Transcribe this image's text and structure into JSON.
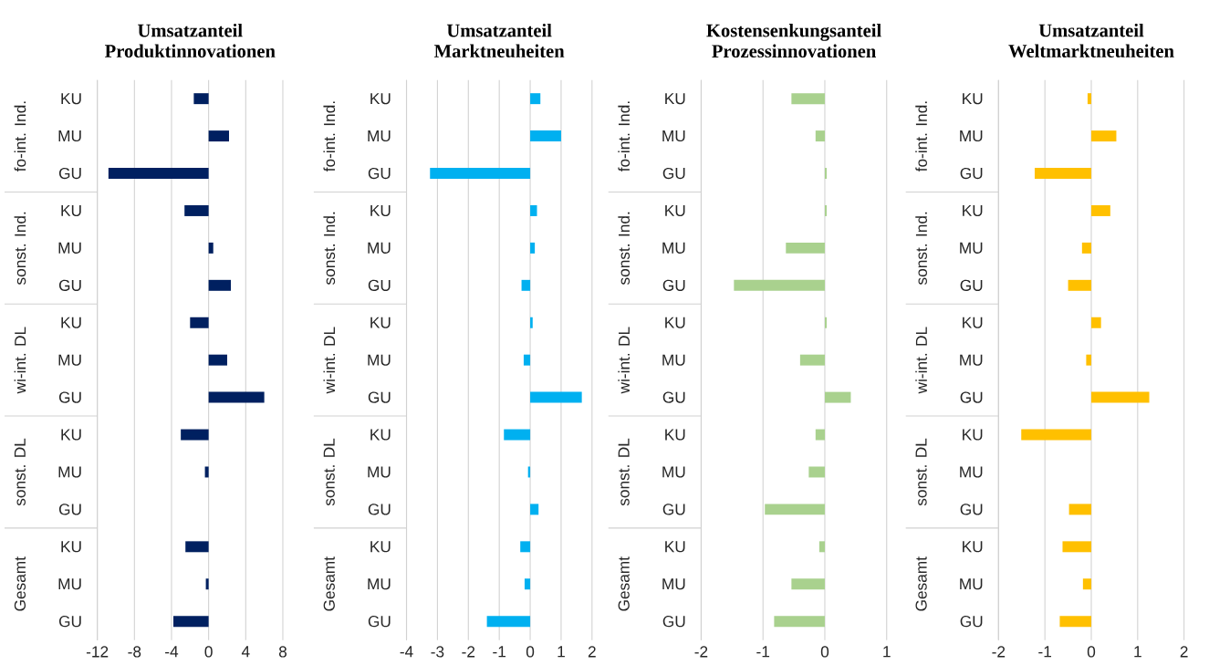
{
  "chart_data": [
    {
      "type": "bar",
      "orientation": "horizontal",
      "title": "Umsatzanteil Produktinnovationen",
      "categories": [
        "KU",
        "MU",
        "GU",
        "KU",
        "MU",
        "GU",
        "KU",
        "MU",
        "GU",
        "KU",
        "MU",
        "GU",
        "KU",
        "MU",
        "GU"
      ],
      "values": [
        -1.6,
        2.2,
        -10.8,
        -2.6,
        0.5,
        2.4,
        -2.0,
        2.0,
        6.0,
        -3.0,
        -0.4,
        null,
        -2.5,
        -0.3,
        -3.8
      ],
      "color": "#002060",
      "xlim": [
        -12,
        8
      ],
      "xticks": [
        -12,
        -8,
        -4,
        0,
        4,
        8
      ],
      "grid": "x",
      "annotations": [
        "fo-int. Ind.",
        "sonst. Ind.",
        "wi-int. DL",
        "sonst. DL",
        "Gesamt"
      ]
    },
    {
      "type": "bar",
      "orientation": "horizontal",
      "title": "Umsatzanteil Marktneuheiten",
      "categories": [
        "KU",
        "MU",
        "GU",
        "KU",
        "MU",
        "GU",
        "KU",
        "MU",
        "GU",
        "KU",
        "MU",
        "GU",
        "KU",
        "MU",
        "GU"
      ],
      "values": [
        0.33,
        1.0,
        -3.24,
        0.22,
        0.15,
        -0.28,
        0.08,
        -0.21,
        1.67,
        -0.85,
        -0.07,
        0.27,
        -0.32,
        -0.18,
        -1.4
      ],
      "color": "#00b0f0",
      "xlim": [
        -4,
        2
      ],
      "xticks": [
        -4,
        -3,
        -2,
        -1,
        0,
        1,
        2
      ],
      "grid": "x",
      "annotations": [
        "fo-int. Ind.",
        "sonst. Ind.",
        "wi-int. DL",
        "sonst. DL",
        "Gesamt"
      ]
    },
    {
      "type": "bar",
      "orientation": "horizontal",
      "title": "Kostensenkungsanteil Prozessinnovationen",
      "categories": [
        "KU",
        "MU",
        "GU",
        "KU",
        "MU",
        "GU",
        "KU",
        "MU",
        "GU",
        "KU",
        "MU",
        "GU",
        "KU",
        "MU",
        "GU"
      ],
      "values": [
        -0.54,
        -0.15,
        0.03,
        0.03,
        -0.63,
        -1.47,
        0.03,
        -0.4,
        0.42,
        -0.15,
        -0.26,
        -0.97,
        -0.09,
        -0.54,
        -0.82
      ],
      "color": "#a9d18e",
      "xlim": [
        -2,
        1
      ],
      "xticks": [
        -2,
        -1,
        0,
        1
      ],
      "grid": "x",
      "annotations": [
        "fo-int. Ind.",
        "sonst. Ind.",
        "wi-int. DL",
        "sonst. DL",
        "Gesamt"
      ]
    },
    {
      "type": "bar",
      "orientation": "horizontal",
      "title": "Umsatzanteil Weltmarktneuheiten",
      "categories": [
        "KU",
        "MU",
        "GU",
        "KU",
        "MU",
        "GU",
        "KU",
        "MU",
        "GU",
        "KU",
        "MU",
        "GU",
        "KU",
        "MU",
        "GU"
      ],
      "values": [
        -0.08,
        0.54,
        -1.22,
        0.41,
        -0.2,
        -0.5,
        0.21,
        -0.11,
        1.25,
        -1.51,
        null,
        -0.48,
        -0.62,
        -0.18,
        -0.68
      ],
      "color": "#ffc000",
      "xlim": [
        -2,
        2
      ],
      "xticks": [
        -2,
        -1,
        0,
        1,
        2
      ],
      "grid": "x",
      "annotations": [
        "fo-int. Ind.",
        "sonst. Ind.",
        "wi-int. DL",
        "sonst. DL",
        "Gesamt"
      ]
    }
  ]
}
